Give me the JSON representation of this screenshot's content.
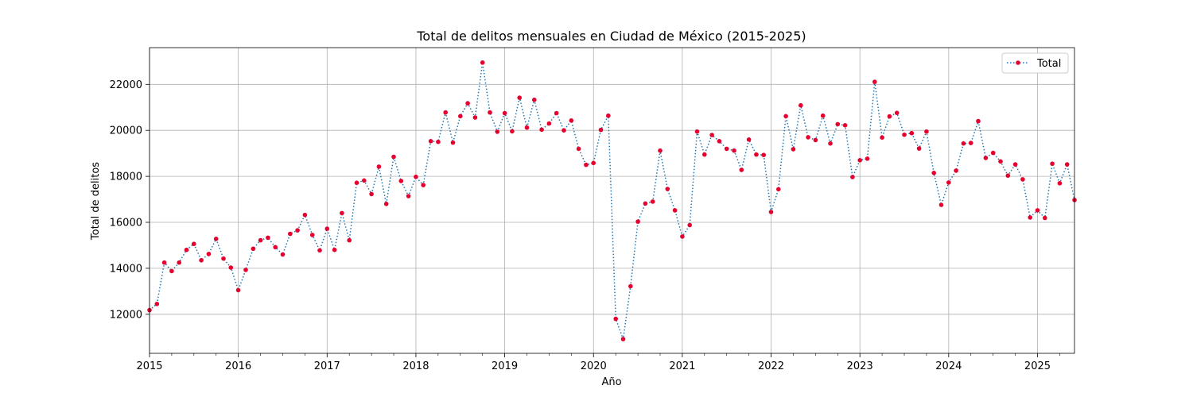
{
  "chart_data": {
    "type": "line",
    "title": "Total de delitos mensuales en Ciudad de México (2015-2025)",
    "xlabel": "Año",
    "ylabel": "Total de delitos",
    "x_range": [
      "2015-01",
      "2025-06"
    ],
    "ylim": [
      10300,
      23600
    ],
    "grid": true,
    "legend_position": "top-right",
    "colors": {
      "line": "#1f77b4",
      "marker": "#e6002e"
    },
    "line_style": "dotted",
    "x_tick_labels": [
      "2015",
      "2016",
      "2017",
      "2018",
      "2019",
      "2020",
      "2021",
      "2022",
      "2023",
      "2024",
      "2025"
    ],
    "y_ticks": [
      12000,
      14000,
      16000,
      18000,
      20000,
      22000
    ],
    "y_tick_labels": [
      "12000",
      "14000",
      "16000",
      "18000",
      "20000",
      "22000"
    ],
    "series": [
      {
        "name": "Total",
        "x": [
          "2015-01",
          "2015-02",
          "2015-03",
          "2015-04",
          "2015-05",
          "2015-06",
          "2015-07",
          "2015-08",
          "2015-09",
          "2015-10",
          "2015-11",
          "2015-12",
          "2016-01",
          "2016-02",
          "2016-03",
          "2016-04",
          "2016-05",
          "2016-06",
          "2016-07",
          "2016-08",
          "2016-09",
          "2016-10",
          "2016-11",
          "2016-12",
          "2017-01",
          "2017-02",
          "2017-03",
          "2017-04",
          "2017-05",
          "2017-06",
          "2017-07",
          "2017-08",
          "2017-09",
          "2017-10",
          "2017-11",
          "2017-12",
          "2018-01",
          "2018-02",
          "2018-03",
          "2018-04",
          "2018-05",
          "2018-06",
          "2018-07",
          "2018-08",
          "2018-09",
          "2018-10",
          "2018-11",
          "2018-12",
          "2019-01",
          "2019-02",
          "2019-03",
          "2019-04",
          "2019-05",
          "2019-06",
          "2019-07",
          "2019-08",
          "2019-09",
          "2019-10",
          "2019-11",
          "2019-12",
          "2020-01",
          "2020-02",
          "2020-03",
          "2020-04",
          "2020-05",
          "2020-06",
          "2020-07",
          "2020-08",
          "2020-09",
          "2020-10",
          "2020-11",
          "2020-12",
          "2021-01",
          "2021-02",
          "2021-03",
          "2021-04",
          "2021-05",
          "2021-06",
          "2021-07",
          "2021-08",
          "2021-09",
          "2021-10",
          "2021-11",
          "2021-12",
          "2022-01",
          "2022-02",
          "2022-03",
          "2022-04",
          "2022-05",
          "2022-06",
          "2022-07",
          "2022-08",
          "2022-09",
          "2022-10",
          "2022-11",
          "2022-12",
          "2023-01",
          "2023-02",
          "2023-03",
          "2023-04",
          "2023-05",
          "2023-06",
          "2023-07",
          "2023-08",
          "2023-09",
          "2023-10",
          "2023-11",
          "2023-12",
          "2024-01",
          "2024-02",
          "2024-03",
          "2024-04",
          "2024-05",
          "2024-06",
          "2024-07",
          "2024-08",
          "2024-09",
          "2024-10",
          "2024-11",
          "2024-12",
          "2025-01",
          "2025-02",
          "2025-03",
          "2025-04",
          "2025-05",
          "2025-06"
        ],
        "values": [
          12180,
          12450,
          14250,
          13880,
          14250,
          14800,
          15060,
          14350,
          14620,
          15280,
          14420,
          14030,
          13050,
          13930,
          14850,
          15220,
          15330,
          14920,
          14600,
          15500,
          15650,
          16320,
          15450,
          14780,
          15720,
          14800,
          16400,
          15220,
          17720,
          17820,
          17230,
          18420,
          16800,
          18850,
          17800,
          17140,
          17980,
          17620,
          19530,
          19500,
          20780,
          19470,
          20620,
          21180,
          20560,
          22950,
          20780,
          19940,
          20750,
          19960,
          21420,
          20120,
          21330,
          20030,
          20300,
          20750,
          20000,
          20430,
          19200,
          18500,
          18580,
          20020,
          20640,
          11800,
          10920,
          13220,
          16030,
          16820,
          16900,
          19120,
          17450,
          16520,
          15380,
          15880,
          19950,
          18950,
          19800,
          19530,
          19200,
          19120,
          18280,
          19600,
          18950,
          18930,
          16450,
          17440,
          20620,
          19180,
          21090,
          19700,
          19580,
          20640,
          19430,
          20270,
          20220,
          17970,
          18700,
          18770,
          22110,
          19690,
          20610,
          20760,
          19810,
          19880,
          19210,
          19950,
          18150,
          16760,
          17730,
          18250,
          19430,
          19450,
          20400,
          18800,
          19020,
          18650,
          18030,
          18520,
          17870,
          16210,
          16520,
          16190,
          18550,
          17700,
          18520,
          16970
        ]
      }
    ]
  }
}
